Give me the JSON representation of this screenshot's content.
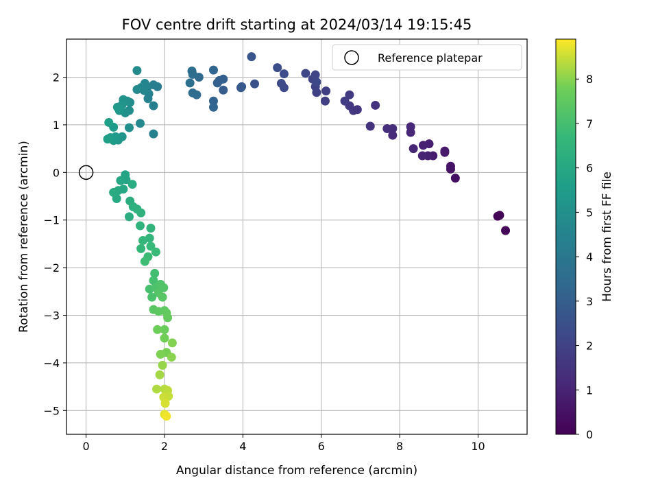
{
  "chart_data": {
    "type": "scatter",
    "title": "FOV centre drift starting at 2024/03/14 19:15:45",
    "xlabel": "Angular distance from reference (arcmin)",
    "ylabel": "Rotation from reference (arcmin)",
    "xlim": [
      -0.5,
      11.25
    ],
    "ylim": [
      -5.5,
      2.8
    ],
    "xticks": [
      0,
      2,
      4,
      6,
      8,
      10
    ],
    "yticks": [
      -5,
      -4,
      -3,
      -2,
      -1,
      0,
      1,
      2
    ],
    "grid": true,
    "legend": {
      "placement": "top-right",
      "entries": [
        "Reference platepar"
      ]
    },
    "reference_point": {
      "x": 0,
      "y": 0
    },
    "colormap": "viridis",
    "colorbar": {
      "label": "Hours from first FF file",
      "range": [
        0,
        8.9
      ],
      "ticks": [
        0,
        1,
        2,
        3,
        4,
        5,
        6,
        7,
        8
      ]
    },
    "points": [
      {
        "x": 10.7,
        "y": -1.22,
        "h": 0.05
      },
      {
        "x": 10.5,
        "y": -0.92,
        "h": 0.15
      },
      {
        "x": 10.55,
        "y": -0.9,
        "h": 0.1
      },
      {
        "x": 9.42,
        "y": -0.12,
        "h": 0.4
      },
      {
        "x": 9.3,
        "y": 0.07,
        "h": 0.5
      },
      {
        "x": 9.3,
        "y": 0.13,
        "h": 0.55
      },
      {
        "x": 9.15,
        "y": 0.42,
        "h": 0.65
      },
      {
        "x": 9.15,
        "y": 0.45,
        "h": 0.7
      },
      {
        "x": 8.85,
        "y": 0.35,
        "h": 0.8
      },
      {
        "x": 8.75,
        "y": 0.6,
        "h": 0.85
      },
      {
        "x": 8.72,
        "y": 0.35,
        "h": 0.9
      },
      {
        "x": 8.6,
        "y": 0.57,
        "h": 0.95
      },
      {
        "x": 8.58,
        "y": 0.35,
        "h": 1.0
      },
      {
        "x": 8.35,
        "y": 0.5,
        "h": 1.05
      },
      {
        "x": 8.28,
        "y": 0.84,
        "h": 1.1
      },
      {
        "x": 8.28,
        "y": 0.96,
        "h": 1.15
      },
      {
        "x": 7.82,
        "y": 0.78,
        "h": 1.25
      },
      {
        "x": 7.82,
        "y": 0.92,
        "h": 1.3
      },
      {
        "x": 7.68,
        "y": 0.92,
        "h": 1.35
      },
      {
        "x": 7.25,
        "y": 0.97,
        "h": 1.45
      },
      {
        "x": 7.38,
        "y": 1.41,
        "h": 1.5
      },
      {
        "x": 6.92,
        "y": 1.32,
        "h": 1.6
      },
      {
        "x": 6.82,
        "y": 1.3,
        "h": 1.65
      },
      {
        "x": 6.72,
        "y": 1.4,
        "h": 1.7
      },
      {
        "x": 6.72,
        "y": 1.63,
        "h": 1.75
      },
      {
        "x": 6.6,
        "y": 1.5,
        "h": 1.8
      },
      {
        "x": 6.1,
        "y": 1.5,
        "h": 1.85
      },
      {
        "x": 6.12,
        "y": 1.71,
        "h": 1.9
      },
      {
        "x": 5.88,
        "y": 1.68,
        "h": 1.95
      },
      {
        "x": 5.85,
        "y": 1.8,
        "h": 2.0
      },
      {
        "x": 5.78,
        "y": 1.96,
        "h": 2.05
      },
      {
        "x": 5.85,
        "y": 2.05,
        "h": 2.1
      },
      {
        "x": 5.6,
        "y": 2.08,
        "h": 2.15
      },
      {
        "x": 5.88,
        "y": 1.9,
        "h": 2.2
      },
      {
        "x": 5.05,
        "y": 1.78,
        "h": 2.25
      },
      {
        "x": 4.98,
        "y": 1.87,
        "h": 2.3
      },
      {
        "x": 5.05,
        "y": 2.07,
        "h": 2.35
      },
      {
        "x": 4.88,
        "y": 2.2,
        "h": 2.4
      },
      {
        "x": 4.3,
        "y": 1.86,
        "h": 2.55
      },
      {
        "x": 4.22,
        "y": 2.43,
        "h": 2.65
      },
      {
        "x": 3.97,
        "y": 1.8,
        "h": 2.75
      },
      {
        "x": 3.95,
        "y": 1.78,
        "h": 2.8
      },
      {
        "x": 3.5,
        "y": 1.73,
        "h": 2.95
      },
      {
        "x": 3.5,
        "y": 1.96,
        "h": 3.0
      },
      {
        "x": 3.4,
        "y": 1.93,
        "h": 3.05
      },
      {
        "x": 3.35,
        "y": 1.88,
        "h": 3.1
      },
      {
        "x": 3.25,
        "y": 1.5,
        "h": 3.2
      },
      {
        "x": 3.25,
        "y": 1.37,
        "h": 3.25
      },
      {
        "x": 3.25,
        "y": 2.15,
        "h": 3.3
      },
      {
        "x": 2.88,
        "y": 2.0,
        "h": 3.45
      },
      {
        "x": 2.82,
        "y": 1.63,
        "h": 3.5
      },
      {
        "x": 2.72,
        "y": 1.67,
        "h": 3.55
      },
      {
        "x": 2.72,
        "y": 2.06,
        "h": 3.6
      },
      {
        "x": 2.7,
        "y": 2.13,
        "h": 3.65
      },
      {
        "x": 2.65,
        "y": 1.88,
        "h": 3.7
      },
      {
        "x": 1.82,
        "y": 1.8,
        "h": 4.2
      },
      {
        "x": 1.72,
        "y": 1.84,
        "h": 4.25
      },
      {
        "x": 1.72,
        "y": 1.4,
        "h": 4.3
      },
      {
        "x": 1.72,
        "y": 0.81,
        "h": 4.35
      },
      {
        "x": 1.6,
        "y": 1.65,
        "h": 4.4
      },
      {
        "x": 1.58,
        "y": 1.55,
        "h": 4.45
      },
      {
        "x": 1.55,
        "y": 1.75,
        "h": 4.5
      },
      {
        "x": 1.5,
        "y": 1.87,
        "h": 4.55
      },
      {
        "x": 1.48,
        "y": 1.72,
        "h": 4.6
      },
      {
        "x": 1.4,
        "y": 1.78,
        "h": 4.65
      },
      {
        "x": 1.38,
        "y": 1.03,
        "h": 4.7
      },
      {
        "x": 1.3,
        "y": 1.74,
        "h": 4.75
      },
      {
        "x": 1.3,
        "y": 2.14,
        "h": 4.8
      },
      {
        "x": 1.12,
        "y": 1.47,
        "h": 4.85
      },
      {
        "x": 1.1,
        "y": 1.3,
        "h": 4.9
      },
      {
        "x": 1.1,
        "y": 0.94,
        "h": 4.95
      },
      {
        "x": 1.05,
        "y": 1.5,
        "h": 5.0
      },
      {
        "x": 1.0,
        "y": 1.25,
        "h": 5.05
      },
      {
        "x": 0.95,
        "y": 1.53,
        "h": 5.1
      },
      {
        "x": 0.92,
        "y": 1.42,
        "h": 5.15
      },
      {
        "x": 0.92,
        "y": 0.75,
        "h": 5.2
      },
      {
        "x": 0.85,
        "y": 1.3,
        "h": 5.25
      },
      {
        "x": 0.82,
        "y": 0.68,
        "h": 5.3
      },
      {
        "x": 0.8,
        "y": 1.37,
        "h": 5.35
      },
      {
        "x": 0.75,
        "y": 0.75,
        "h": 5.4
      },
      {
        "x": 0.7,
        "y": 0.67,
        "h": 5.45
      },
      {
        "x": 0.7,
        "y": 0.95,
        "h": 5.5
      },
      {
        "x": 0.62,
        "y": 0.73,
        "h": 5.55
      },
      {
        "x": 0.58,
        "y": 1.05,
        "h": 5.6
      },
      {
        "x": 0.55,
        "y": 0.7,
        "h": 5.65
      },
      {
        "x": 1.0,
        "y": -0.05,
        "h": 5.8
      },
      {
        "x": 1.02,
        "y": -0.15,
        "h": 5.85
      },
      {
        "x": 0.88,
        "y": -0.17,
        "h": 5.9
      },
      {
        "x": 0.95,
        "y": -0.35,
        "h": 5.95
      },
      {
        "x": 0.82,
        "y": -0.38,
        "h": 6.0
      },
      {
        "x": 0.78,
        "y": -0.55,
        "h": 6.05
      },
      {
        "x": 0.7,
        "y": -0.42,
        "h": 6.1
      },
      {
        "x": 1.18,
        "y": -0.25,
        "h": 6.15
      },
      {
        "x": 1.1,
        "y": -0.93,
        "h": 6.2
      },
      {
        "x": 1.12,
        "y": -0.6,
        "h": 6.25
      },
      {
        "x": 1.2,
        "y": -0.72,
        "h": 6.3
      },
      {
        "x": 1.3,
        "y": -0.77,
        "h": 6.35
      },
      {
        "x": 1.4,
        "y": -0.85,
        "h": 6.4
      },
      {
        "x": 1.38,
        "y": -1.12,
        "h": 6.45
      },
      {
        "x": 1.65,
        "y": -1.17,
        "h": 6.5
      },
      {
        "x": 1.62,
        "y": -1.38,
        "h": 6.55
      },
      {
        "x": 1.45,
        "y": -1.43,
        "h": 6.6
      },
      {
        "x": 1.4,
        "y": -1.6,
        "h": 6.65
      },
      {
        "x": 1.65,
        "y": -1.55,
        "h": 6.7
      },
      {
        "x": 1.78,
        "y": -1.67,
        "h": 6.75
      },
      {
        "x": 1.58,
        "y": -1.77,
        "h": 6.8
      },
      {
        "x": 1.5,
        "y": -1.87,
        "h": 6.85
      },
      {
        "x": 1.75,
        "y": -2.12,
        "h": 6.95
      },
      {
        "x": 1.72,
        "y": -2.27,
        "h": 7.0
      },
      {
        "x": 1.62,
        "y": -2.45,
        "h": 7.05
      },
      {
        "x": 1.68,
        "y": -2.62,
        "h": 7.1
      },
      {
        "x": 1.78,
        "y": -2.42,
        "h": 7.15
      },
      {
        "x": 1.9,
        "y": -2.35,
        "h": 7.2
      },
      {
        "x": 1.98,
        "y": -2.42,
        "h": 7.25
      },
      {
        "x": 1.85,
        "y": -2.53,
        "h": 7.3
      },
      {
        "x": 1.95,
        "y": -2.62,
        "h": 7.35
      },
      {
        "x": 1.72,
        "y": -2.88,
        "h": 7.4
      },
      {
        "x": 1.85,
        "y": -2.92,
        "h": 7.45
      },
      {
        "x": 2.0,
        "y": -2.9,
        "h": 7.5
      },
      {
        "x": 2.05,
        "y": -2.95,
        "h": 7.55
      },
      {
        "x": 2.08,
        "y": -3.05,
        "h": 7.6
      },
      {
        "x": 2.0,
        "y": -3.3,
        "h": 7.7
      },
      {
        "x": 1.82,
        "y": -3.3,
        "h": 7.75
      },
      {
        "x": 2.0,
        "y": -3.48,
        "h": 7.8
      },
      {
        "x": 2.05,
        "y": -3.78,
        "h": 7.85
      },
      {
        "x": 1.9,
        "y": -3.82,
        "h": 7.9
      },
      {
        "x": 2.2,
        "y": -3.58,
        "h": 7.95
      },
      {
        "x": 2.18,
        "y": -3.88,
        "h": 8.0
      },
      {
        "x": 1.95,
        "y": -4.05,
        "h": 8.1
      },
      {
        "x": 1.88,
        "y": -4.25,
        "h": 8.2
      },
      {
        "x": 1.8,
        "y": -4.55,
        "h": 8.3
      },
      {
        "x": 2.0,
        "y": -4.55,
        "h": 8.35
      },
      {
        "x": 2.08,
        "y": -4.58,
        "h": 8.4
      },
      {
        "x": 2.1,
        "y": -4.7,
        "h": 8.45
      },
      {
        "x": 1.98,
        "y": -4.72,
        "h": 8.5
      },
      {
        "x": 2.02,
        "y": -4.85,
        "h": 8.6
      },
      {
        "x": 2.0,
        "y": -5.08,
        "h": 8.7
      },
      {
        "x": 2.05,
        "y": -5.12,
        "h": 8.8
      }
    ]
  }
}
